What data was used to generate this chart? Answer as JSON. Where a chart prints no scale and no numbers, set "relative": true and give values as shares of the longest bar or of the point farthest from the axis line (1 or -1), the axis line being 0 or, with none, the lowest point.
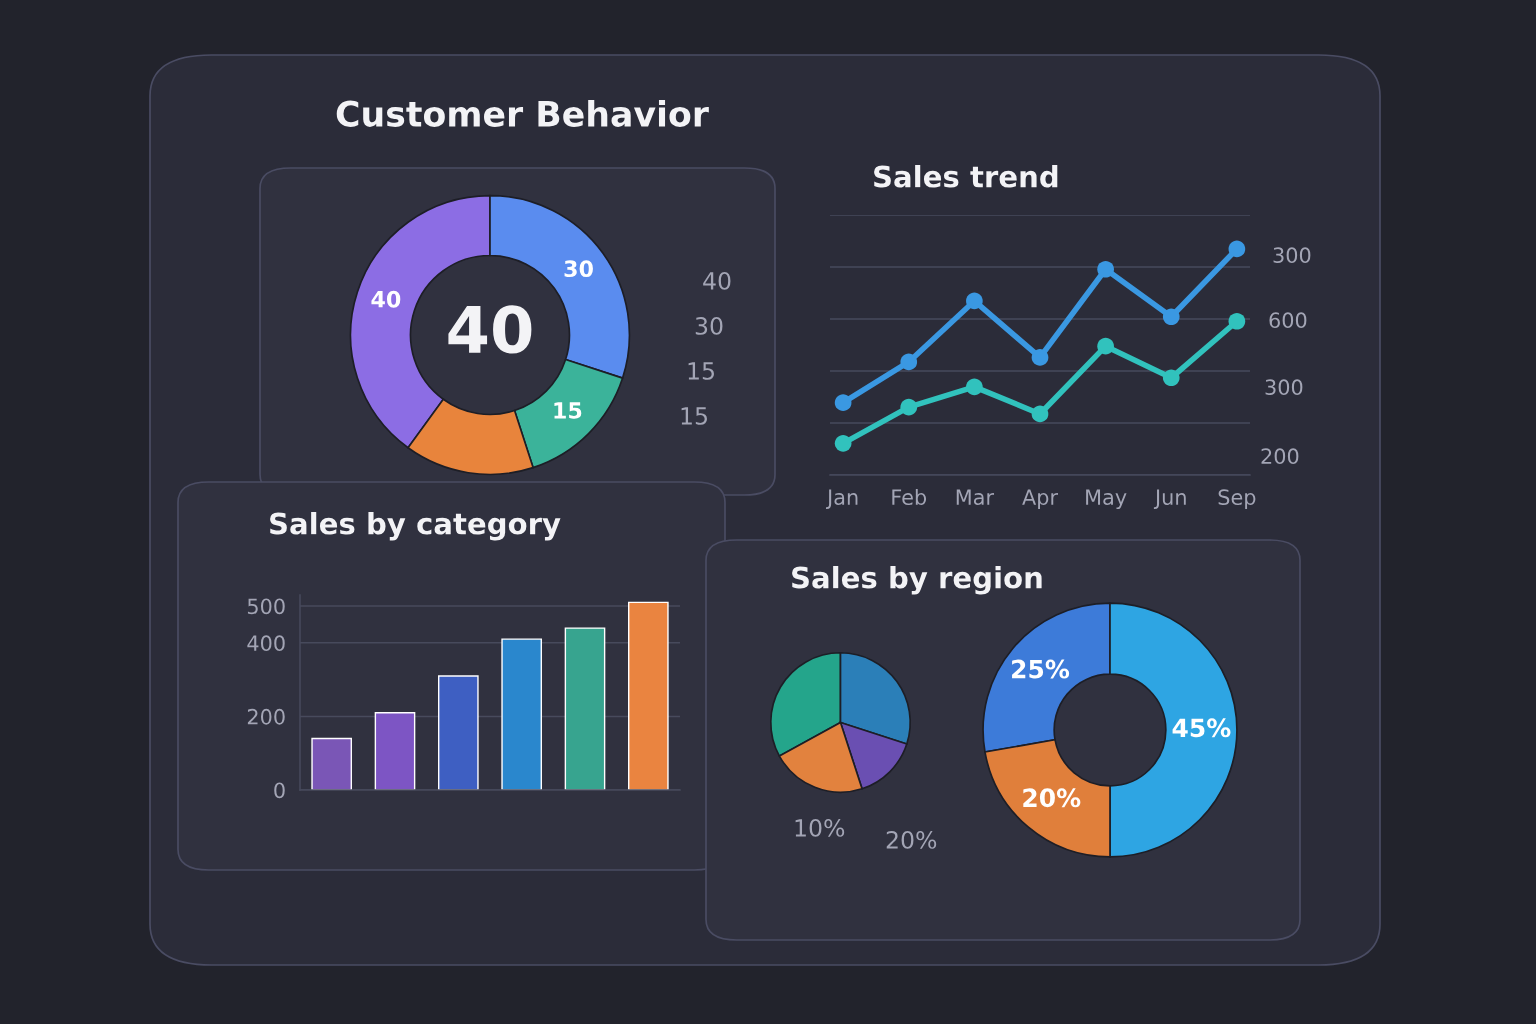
{
  "chart_data": [
    {
      "type": "donut",
      "title": "Customer Behavior",
      "categories": [
        null,
        null,
        null,
        null
      ],
      "values": [
        40,
        30,
        15,
        15
      ],
      "colors": [
        "#8c6de4",
        "#5a8cef",
        "#3bb39a",
        "#e8843c"
      ],
      "value_labels": [
        "40",
        "30",
        "15",
        null
      ],
      "annotations": [
        "40",
        "40",
        "30",
        "15",
        "15"
      ]
    },
    {
      "type": "line",
      "title": "Sales trend",
      "categories": [
        "Jan",
        "Feb",
        "Mar",
        "Apr",
        "May",
        "Jun",
        "Sep"
      ],
      "relative": true,
      "series": [
        {
          "color": "#3a98e2",
          "values": [
            0.32,
            0.5,
            0.77,
            0.52,
            0.91,
            0.7,
            1.0
          ]
        },
        {
          "color": "#31c2bd",
          "values": [
            0.14,
            0.3,
            0.39,
            0.27,
            0.57,
            0.43,
            0.68
          ]
        }
      ],
      "grid": "y",
      "marker": "circle",
      "annotations": [
        "300",
        "600",
        "300",
        "200"
      ]
    },
    {
      "type": "bar",
      "title": "Sales by category",
      "categories": [
        null,
        null,
        null,
        null,
        null,
        null
      ],
      "values": [
        140,
        210,
        310,
        410,
        440,
        510
      ],
      "colors": [
        "#7a56b6",
        "#7d55c4",
        "#3e5fc2",
        "#2a87cd",
        "#37a48f",
        "#ea8440"
      ],
      "ylim": [
        0,
        530
      ],
      "yticks": [
        0,
        200,
        400,
        500
      ],
      "grid": "y",
      "tick_labels": "y"
    },
    {
      "type": "pie",
      "title": "Sales by region",
      "categories": [
        null,
        null,
        null,
        null
      ],
      "values": [
        33,
        30,
        15,
        22
      ],
      "colors": [
        "#24a58b",
        "#2b7fb8",
        "#6a4fb2",
        "#e2823e"
      ],
      "annotations": [
        "10%",
        "20%"
      ]
    },
    {
      "type": "donut",
      "categories": [
        null,
        null,
        null
      ],
      "values": [
        25,
        45,
        20
      ],
      "colors": [
        "#3d7bd9",
        "#2ea5e3",
        "#e07f3b"
      ],
      "value_labels": [
        "25%",
        "45%",
        "20%"
      ]
    }
  ]
}
